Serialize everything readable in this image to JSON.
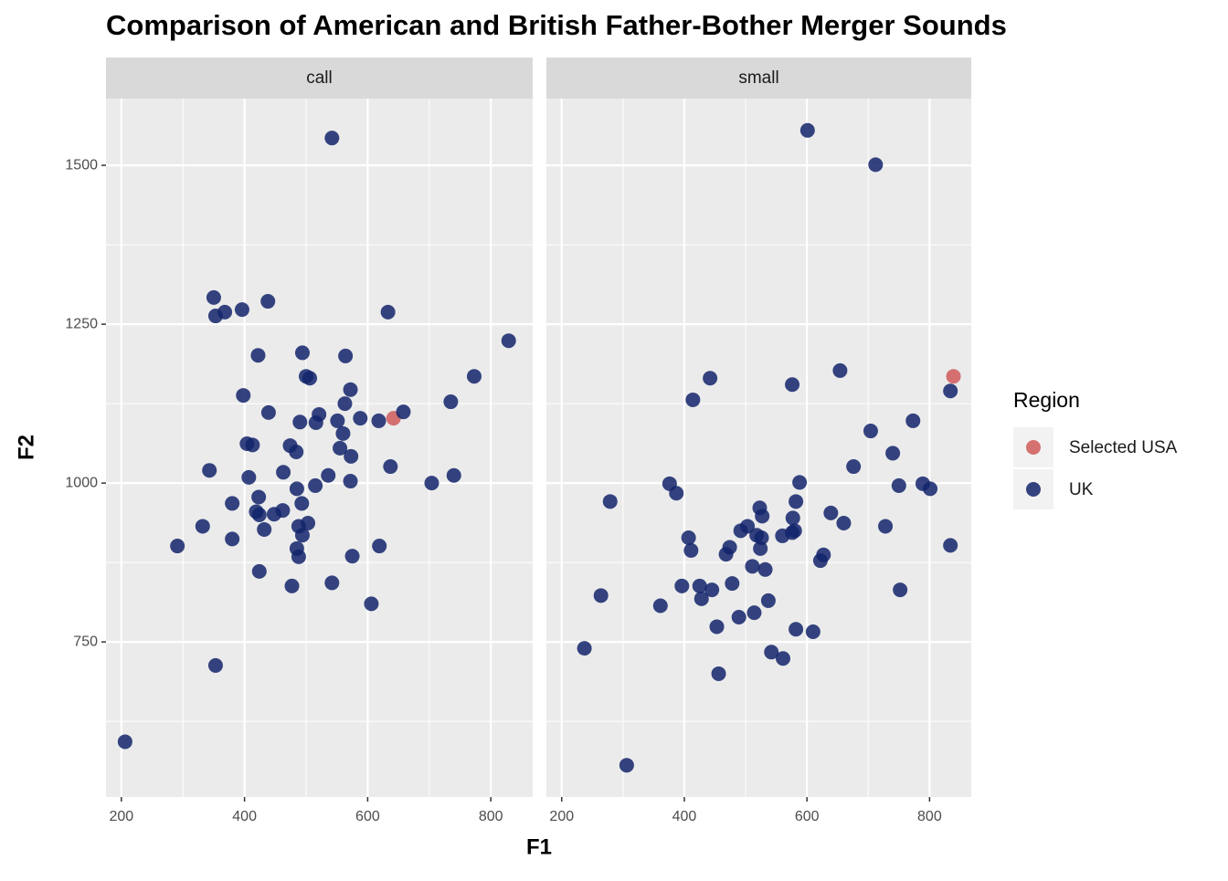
{
  "title": "Comparison of American and British Father-Bother Merger Sounds",
  "xlabel": "F1",
  "ylabel": "F2",
  "legend": {
    "title": "Region",
    "position": "right"
  },
  "chart_data": [
    {
      "type": "scatter",
      "facet": "call",
      "xlim": [
        175,
        868
      ],
      "xticks": [
        200,
        400,
        600,
        800
      ],
      "xminor": [
        300,
        500,
        700
      ],
      "ylim": [
        506,
        1605
      ],
      "yticks": [
        750,
        1000,
        1250,
        1500
      ],
      "yminor": [
        625,
        875,
        1125,
        1375
      ],
      "series": [
        {
          "name": "Selected USA",
          "color": "#d05a5a",
          "x": [
            642
          ],
          "values": [
            1102
          ]
        },
        {
          "name": "UK",
          "color": "#13246b",
          "x": [
            206,
            291,
            332,
            343,
            350,
            353,
            353,
            368,
            380,
            380,
            396,
            398,
            404,
            407,
            413,
            419,
            422,
            423,
            424,
            424,
            432,
            438,
            439,
            448,
            462,
            463,
            474,
            477,
            484,
            485,
            485,
            488,
            488,
            490,
            493,
            494,
            494,
            500,
            503,
            506,
            515,
            516,
            521,
            536,
            542,
            542,
            551,
            555,
            560,
            563,
            564,
            572,
            572,
            573,
            575,
            588,
            606,
            618,
            619,
            633,
            637,
            658,
            704,
            735,
            740,
            773,
            829
          ],
          "values": [
            593,
            901,
            932,
            1020,
            1292,
            1263,
            713,
            1269,
            912,
            968,
            1273,
            1138,
            1062,
            1009,
            1060,
            955,
            1201,
            978,
            950,
            861,
            927,
            1286,
            1111,
            951,
            957,
            1017,
            1059,
            838,
            1049,
            991,
            897,
            884,
            932,
            1096,
            968,
            1205,
            918,
            1168,
            937,
            1165,
            996,
            1095,
            1108,
            1012,
            1543,
            843,
            1098,
            1055,
            1078,
            1125,
            1200,
            1147,
            1003,
            1042,
            885,
            1102,
            810,
            1098,
            901,
            1269,
            1026,
            1112,
            1000,
            1128,
            1012,
            1168,
            1224
          ]
        }
      ]
    },
    {
      "type": "scatter",
      "facet": "small",
      "xlim": [
        175,
        868
      ],
      "xticks": [
        200,
        400,
        600,
        800
      ],
      "xminor": [
        300,
        500,
        700
      ],
      "ylim": [
        506,
        1605
      ],
      "yticks": [
        750,
        1000,
        1250,
        1500
      ],
      "yminor": [
        625,
        875,
        1125,
        1375
      ],
      "series": [
        {
          "color": "#d05a5a",
          "x": [
            839
          ],
          "values": [
            1168
          ]
        },
        {
          "color": "#13246b",
          "x": [
            237,
            264,
            279,
            306,
            361,
            376,
            387,
            396,
            407,
            411,
            414,
            425,
            428,
            442,
            445,
            453,
            456,
            468,
            474,
            478,
            489,
            492,
            503,
            511,
            514,
            518,
            523,
            524,
            526,
            527,
            532,
            537,
            542,
            560,
            561,
            576,
            576,
            577,
            580,
            582,
            582,
            588,
            601,
            610,
            622,
            627,
            639,
            654,
            660,
            676,
            704,
            712,
            728,
            740,
            750,
            752,
            773,
            789,
            801,
            834,
            834
          ],
          "values": [
            740,
            823,
            971,
            556,
            807,
            999,
            984,
            838,
            914,
            894,
            1131,
            838,
            818,
            1165,
            832,
            774,
            700,
            888,
            899,
            842,
            789,
            925,
            932,
            869,
            796,
            918,
            961,
            897,
            914,
            948,
            864,
            815,
            734,
            917,
            724,
            1155,
            922,
            945,
            925,
            971,
            770,
            1001,
            1555,
            766,
            878,
            887,
            953,
            1177,
            937,
            1026,
            1082,
            1501,
            932,
            1047,
            996,
            832,
            1098,
            999,
            991,
            1145,
            902
          ]
        }
      ]
    }
  ]
}
